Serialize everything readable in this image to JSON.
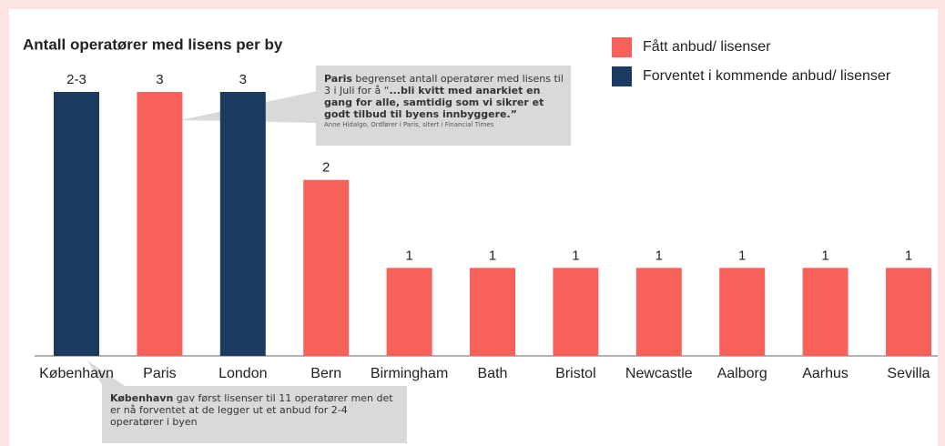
{
  "chart_data": {
    "type": "bar",
    "title": "Antall operatører med lisens per by",
    "categories": [
      "København",
      "Paris",
      "London",
      "Bern",
      "Birmingham",
      "Bath",
      "Bristol",
      "Newcastle",
      "Aalborg",
      "Aarhus",
      "Sevilla"
    ],
    "values": [
      3,
      3,
      3,
      2,
      1,
      1,
      1,
      1,
      1,
      1,
      1
    ],
    "value_labels": [
      "2-3",
      "3",
      "3",
      "2",
      "1",
      "1",
      "1",
      "1",
      "1",
      "1",
      "1"
    ],
    "colors": [
      "#1b3a5f",
      "#f8615a",
      "#1b3a5f",
      "#f8615a",
      "#f8615a",
      "#f8615a",
      "#f8615a",
      "#f8615a",
      "#f8615a",
      "#f8615a",
      "#f8615a"
    ],
    "ylim": [
      0,
      3
    ],
    "legend": [
      {
        "name": "Fått anbud/ lisenser",
        "color": "#f8615a"
      },
      {
        "name": "Forventet i kommende anbud/ lisenser",
        "color": "#1b3a5f"
      }
    ],
    "annotations": [
      {
        "parts": [
          {
            "text": "Paris",
            "bold": true
          },
          {
            "text": " begrenset antall operatører med lisens til 3 i Juli for å “",
            "bold": false
          },
          {
            "text": "...bli kvitt med anarkiet en gang for alle, samtidig som vi sikrer et godt tilbud til byens innbyggere.”",
            "bold": true
          }
        ],
        "source": "Anne Hidalgo, Ordfører i Paris, sitert i  Financial Times"
      },
      {
        "parts": [
          {
            "text": "København",
            "bold": true
          },
          {
            "text": " gav først lisenser til 11 operatører men det er nå forventet at de legger ut et anbud for 2-4 operatører i byen",
            "bold": false
          }
        ]
      }
    ]
  }
}
